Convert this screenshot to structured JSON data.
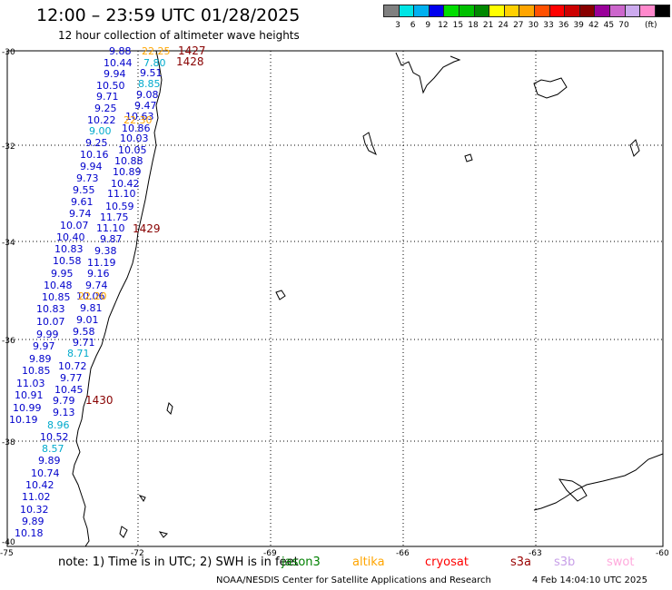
{
  "header": {
    "title": "12:00 – 23:59 UTC 01/28/2025",
    "subtitle": "12 hour collection of altimeter wave heights"
  },
  "colorbar": {
    "colors": [
      "#808080",
      "#00e5e5",
      "#00b0f0",
      "#0000ee",
      "#00dd00",
      "#00c000",
      "#008800",
      "#ffff00",
      "#ffd000",
      "#ffa500",
      "#ff5000",
      "#ff0000",
      "#cc0000",
      "#880000",
      "#990099",
      "#cc66cc",
      "#ccaaee",
      "#ff88cc",
      "#000000"
    ],
    "labels": [
      "3",
      "6",
      "9",
      "12",
      "15",
      "18",
      "21",
      "24",
      "27",
      "30",
      "33",
      "36",
      "39",
      "42",
      "45",
      "70"
    ],
    "unit": "(ft)"
  },
  "axes": {
    "lat_labels": [
      "-30",
      "-32",
      "-34",
      "-36",
      "-38",
      "-40"
    ],
    "lon_labels": [
      "-75",
      "-72",
      "-69",
      "-66",
      "-63",
      "-60"
    ]
  },
  "tracks": [
    {
      "time": "1427",
      "color": "#880000"
    },
    {
      "time": "1428",
      "color": "#880000"
    },
    {
      "time": "1429",
      "color": "#880000"
    },
    {
      "time": "1430",
      "color": "#880000"
    }
  ],
  "wave_labels": [
    {
      "text": "9.88",
      "color": "#0000cc"
    },
    {
      "text": "22.25",
      "color": "#ffa500"
    },
    {
      "text": "10.44",
      "color": "#0000cc"
    },
    {
      "text": "7.80",
      "color": "#00aacc"
    },
    {
      "text": "9.94",
      "color": "#0000cc"
    },
    {
      "text": "9.51",
      "color": "#0000cc"
    },
    {
      "text": "10.50",
      "color": "#0000cc"
    },
    {
      "text": "8.85",
      "color": "#00aacc"
    },
    {
      "text": "9.71",
      "color": "#0000cc"
    },
    {
      "text": "9.08",
      "color": "#0000cc"
    },
    {
      "text": "9.25",
      "color": "#0000cc"
    },
    {
      "text": "9.47",
      "color": "#0000cc"
    },
    {
      "text": "10.63",
      "color": "#0000cc"
    },
    {
      "text": "10.22",
      "color": "#0000cc"
    },
    {
      "text": "22.30",
      "color": "#ffa500"
    },
    {
      "text": "9.00",
      "color": "#00aacc"
    },
    {
      "text": "10.86",
      "color": "#0000cc"
    },
    {
      "text": "10.03",
      "color": "#0000cc"
    },
    {
      "text": "9.25",
      "color": "#0000cc"
    },
    {
      "text": "10.05",
      "color": "#0000cc"
    },
    {
      "text": "10.16",
      "color": "#0000cc"
    },
    {
      "text": "10.88",
      "color": "#0000cc"
    },
    {
      "text": "9.94",
      "color": "#0000cc"
    },
    {
      "text": "10.89",
      "color": "#0000cc"
    },
    {
      "text": "9.73",
      "color": "#0000cc"
    },
    {
      "text": "10.42",
      "color": "#0000cc"
    },
    {
      "text": "9.55",
      "color": "#0000cc"
    },
    {
      "text": "11.10",
      "color": "#0000cc"
    },
    {
      "text": "9.61",
      "color": "#0000cc"
    },
    {
      "text": "10.59",
      "color": "#0000cc"
    },
    {
      "text": "9.74",
      "color": "#0000cc"
    },
    {
      "text": "11.75",
      "color": "#0000cc"
    },
    {
      "text": "10.07",
      "color": "#0000cc"
    },
    {
      "text": "11.10",
      "color": "#0000cc"
    },
    {
      "text": "10.40",
      "color": "#0000cc"
    },
    {
      "text": "9.87",
      "color": "#0000cc"
    },
    {
      "text": "10.83",
      "color": "#0000cc"
    },
    {
      "text": "9.38",
      "color": "#0000cc"
    },
    {
      "text": "10.58",
      "color": "#0000cc"
    },
    {
      "text": "11.19",
      "color": "#0000cc"
    },
    {
      "text": "9.95",
      "color": "#0000cc"
    },
    {
      "text": "9.16",
      "color": "#0000cc"
    },
    {
      "text": "10.48",
      "color": "#0000cc"
    },
    {
      "text": "9.74",
      "color": "#0000cc"
    },
    {
      "text": "10.85",
      "color": "#0000cc"
    },
    {
      "text": "10.06",
      "color": "#0000cc"
    },
    {
      "text": "22.20",
      "color": "#ffa500"
    },
    {
      "text": "10.83",
      "color": "#0000cc"
    },
    {
      "text": "9.81",
      "color": "#0000cc"
    },
    {
      "text": "10.07",
      "color": "#0000cc"
    },
    {
      "text": "9.01",
      "color": "#0000cc"
    },
    {
      "text": "9.99",
      "color": "#0000cc"
    },
    {
      "text": "9.58",
      "color": "#0000cc"
    },
    {
      "text": "9.97",
      "color": "#0000cc"
    },
    {
      "text": "9.71",
      "color": "#0000cc"
    },
    {
      "text": "9.89",
      "color": "#0000cc"
    },
    {
      "text": "8.71",
      "color": "#00aacc"
    },
    {
      "text": "10.85",
      "color": "#0000cc"
    },
    {
      "text": "10.72",
      "color": "#0000cc"
    },
    {
      "text": "11.03",
      "color": "#0000cc"
    },
    {
      "text": "9.77",
      "color": "#0000cc"
    },
    {
      "text": "10.91",
      "color": "#0000cc"
    },
    {
      "text": "10.45",
      "color": "#0000cc"
    },
    {
      "text": "10.99",
      "color": "#0000cc"
    },
    {
      "text": "9.79",
      "color": "#0000cc"
    },
    {
      "text": "10.19",
      "color": "#0000cc"
    },
    {
      "text": "9.13",
      "color": "#0000cc"
    },
    {
      "text": "8.96",
      "color": "#00aacc"
    },
    {
      "text": "10.52",
      "color": "#0000cc"
    },
    {
      "text": "8.57",
      "color": "#00aacc"
    },
    {
      "text": "9.89",
      "color": "#0000cc"
    },
    {
      "text": "10.74",
      "color": "#0000cc"
    },
    {
      "text": "10.42",
      "color": "#0000cc"
    },
    {
      "text": "11.02",
      "color": "#0000cc"
    },
    {
      "text": "10.32",
      "color": "#0000cc"
    },
    {
      "text": "9.89",
      "color": "#0000cc"
    },
    {
      "text": "10.18",
      "color": "#0000cc"
    }
  ],
  "footer": {
    "note": "note:  1) Time is in UTC;  2) SWH is in feet",
    "satellites": [
      {
        "name": "jason3",
        "color": "#008000"
      },
      {
        "name": "altika",
        "color": "#ffa500"
      },
      {
        "name": "cryosat",
        "color": "#ff0000"
      },
      {
        "name": "s3a",
        "color": "#990000"
      },
      {
        "name": "s3b",
        "color": "#c8a0e8"
      },
      {
        "name": "swot",
        "color": "#ffaadd"
      }
    ],
    "credit": "NOAA/NESDIS Center for Satellite Applications and Research",
    "timestamp": "4 Feb 14:04:10 UTC 2025"
  }
}
